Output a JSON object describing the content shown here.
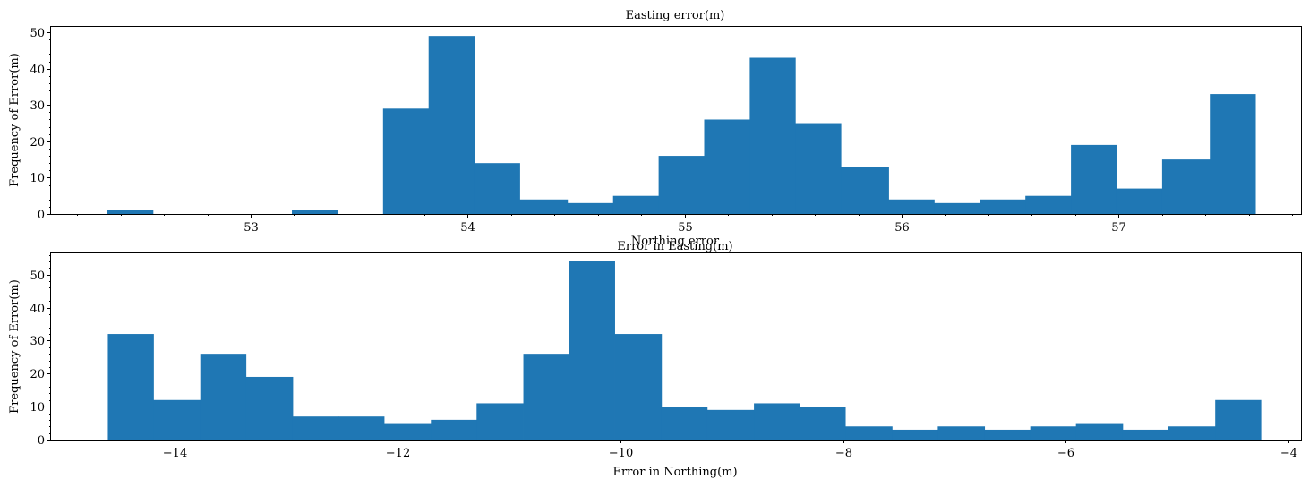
{
  "chart_data": [
    {
      "type": "bar",
      "title": "Easting error(m)",
      "xlabel": "Error in Easting(m)",
      "ylabel": "Frequency of Error(m)",
      "xlim": [
        52.08,
        57.84
      ],
      "ylim": [
        0,
        51.5
      ],
      "xticks": [
        53,
        54,
        55,
        56,
        57
      ],
      "xtick_labels": [
        "53",
        "54",
        "55",
        "56",
        "57"
      ],
      "yticks": [
        0,
        10,
        20,
        30,
        40,
        50
      ],
      "ytick_labels": [
        "0",
        "10",
        "20",
        "30",
        "40",
        "50"
      ],
      "color": "#1f77b4",
      "bins": [
        {
          "x0": 52.34,
          "x1": 52.55,
          "count": 1
        },
        {
          "x0": 52.55,
          "x1": 52.76,
          "count": 0
        },
        {
          "x0": 52.76,
          "x1": 52.98,
          "count": 0
        },
        {
          "x0": 52.98,
          "x1": 53.19,
          "count": 0
        },
        {
          "x0": 53.19,
          "x1": 53.4,
          "count": 1
        },
        {
          "x0": 53.4,
          "x1": 53.61,
          "count": 0
        },
        {
          "x0": 53.61,
          "x1": 53.82,
          "count": 29
        },
        {
          "x0": 53.82,
          "x1": 54.03,
          "count": 49
        },
        {
          "x0": 54.03,
          "x1": 54.24,
          "count": 14
        },
        {
          "x0": 54.24,
          "x1": 54.46,
          "count": 4
        },
        {
          "x0": 54.46,
          "x1": 54.67,
          "count": 3
        },
        {
          "x0": 54.67,
          "x1": 54.88,
          "count": 5
        },
        {
          "x0": 54.88,
          "x1": 55.09,
          "count": 16
        },
        {
          "x0": 55.09,
          "x1": 55.3,
          "count": 26
        },
        {
          "x0": 55.3,
          "x1": 55.51,
          "count": 43
        },
        {
          "x0": 55.51,
          "x1": 55.72,
          "count": 25
        },
        {
          "x0": 55.72,
          "x1": 55.94,
          "count": 13
        },
        {
          "x0": 55.94,
          "x1": 56.15,
          "count": 4
        },
        {
          "x0": 56.15,
          "x1": 56.36,
          "count": 3
        },
        {
          "x0": 56.36,
          "x1": 56.57,
          "count": 4
        },
        {
          "x0": 56.57,
          "x1": 56.78,
          "count": 5
        },
        {
          "x0": 56.78,
          "x1": 56.99,
          "count": 19
        },
        {
          "x0": 56.99,
          "x1": 57.2,
          "count": 7
        },
        {
          "x0": 57.2,
          "x1": 57.42,
          "count": 15
        },
        {
          "x0": 57.42,
          "x1": 57.63,
          "count": 33
        }
      ]
    },
    {
      "type": "bar",
      "title": "Northing error",
      "xlabel": "Error in Northing(m)",
      "ylabel": "Frequency of Error(m)",
      "xlim": [
        -15.11,
        -3.89
      ],
      "ylim": [
        0,
        56.7
      ],
      "xticks": [
        -14,
        -12,
        -10,
        -8,
        -6,
        -4
      ],
      "xtick_labels": [
        "−14",
        "−12",
        "−10",
        "−8",
        "−6",
        "−4"
      ],
      "yticks": [
        0,
        10,
        20,
        30,
        40,
        50
      ],
      "ytick_labels": [
        "0",
        "10",
        "20",
        "30",
        "40",
        "50"
      ],
      "color": "#1f77b4",
      "bins": [
        {
          "x0": -14.6,
          "x1": -14.19,
          "count": 32
        },
        {
          "x0": -14.19,
          "x1": -13.77,
          "count": 12
        },
        {
          "x0": -13.77,
          "x1": -13.36,
          "count": 26
        },
        {
          "x0": -13.36,
          "x1": -12.94,
          "count": 19
        },
        {
          "x0": -12.94,
          "x1": -12.53,
          "count": 7
        },
        {
          "x0": -12.53,
          "x1": -12.12,
          "count": 7
        },
        {
          "x0": -12.12,
          "x1": -11.7,
          "count": 5
        },
        {
          "x0": -11.7,
          "x1": -11.29,
          "count": 6
        },
        {
          "x0": -11.29,
          "x1": -10.87,
          "count": 11
        },
        {
          "x0": -10.87,
          "x1": -10.46,
          "count": 26
        },
        {
          "x0": -10.46,
          "x1": -10.05,
          "count": 54
        },
        {
          "x0": -10.05,
          "x1": -9.63,
          "count": 32
        },
        {
          "x0": -9.63,
          "x1": -9.22,
          "count": 10
        },
        {
          "x0": -9.22,
          "x1": -8.8,
          "count": 9
        },
        {
          "x0": -8.8,
          "x1": -8.39,
          "count": 11
        },
        {
          "x0": -8.39,
          "x1": -7.98,
          "count": 10
        },
        {
          "x0": -7.98,
          "x1": -7.56,
          "count": 4
        },
        {
          "x0": -7.56,
          "x1": -7.15,
          "count": 3
        },
        {
          "x0": -7.15,
          "x1": -6.73,
          "count": 4
        },
        {
          "x0": -6.73,
          "x1": -6.32,
          "count": 3
        },
        {
          "x0": -6.32,
          "x1": -5.91,
          "count": 4
        },
        {
          "x0": -5.91,
          "x1": -5.49,
          "count": 5
        },
        {
          "x0": -5.49,
          "x1": -5.08,
          "count": 3
        },
        {
          "x0": -5.08,
          "x1": -4.66,
          "count": 4
        },
        {
          "x0": -4.66,
          "x1": -4.25,
          "count": 12
        }
      ]
    }
  ]
}
